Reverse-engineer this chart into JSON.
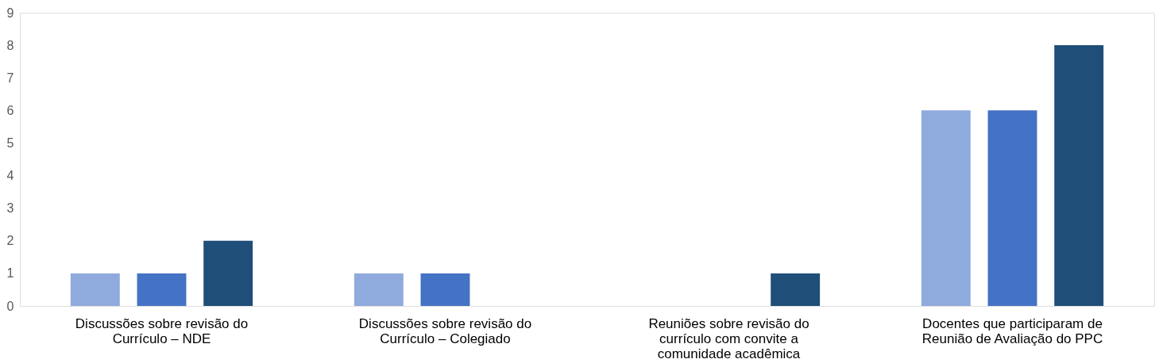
{
  "chart_data": {
    "type": "bar",
    "categories": [
      "Discussões sobre revisão do Currículo – NDE",
      "Discussões sobre revisão do Currículo – Colegiado",
      "Reuniões sobre revisão do currículo com convite a comunidade acadêmica",
      "Docentes que participaram de Reunião de Avaliação do PPC"
    ],
    "series": [
      {
        "color": "#8faadc",
        "values": [
          1,
          1,
          0,
          6
        ]
      },
      {
        "color": "#4472c4",
        "values": [
          1,
          1,
          0,
          6
        ]
      },
      {
        "color": "#1f4e79",
        "values": [
          2,
          0,
          1,
          8
        ]
      }
    ],
    "ylim": [
      0,
      9
    ],
    "yticks": [
      0,
      1,
      2,
      3,
      4,
      5,
      6,
      7,
      8,
      9
    ],
    "grid": false,
    "legend": false
  }
}
